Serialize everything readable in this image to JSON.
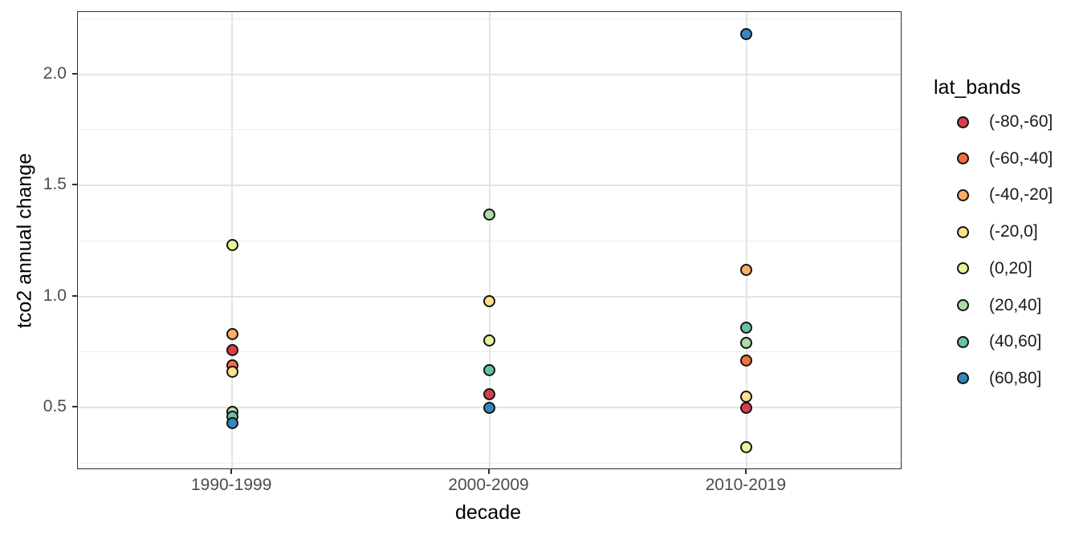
{
  "chart_data": {
    "type": "scatter",
    "title": "",
    "xlabel": "decade",
    "ylabel": "tco2 annual change",
    "categories": [
      "1990-1999",
      "2000-2009",
      "2010-2019"
    ],
    "y_axis": {
      "ticks": [
        {
          "value": 0.5,
          "label": "0.5"
        },
        {
          "value": 1.0,
          "label": "1.0"
        },
        {
          "value": 1.5,
          "label": "1.5"
        },
        {
          "value": 2.0,
          "label": "2.0"
        }
      ],
      "minor": [
        0.25,
        0.75,
        1.25,
        1.75,
        2.25
      ],
      "ylim": [
        0.226,
        2.28
      ]
    },
    "grid": true,
    "legend_title": "lat_bands",
    "legend_position": "right",
    "series": [
      {
        "name": "(-80,-60]",
        "color": "#d53e4f",
        "points": [
          {
            "decade": "1990-1999",
            "value": 0.76
          },
          {
            "decade": "2000-2009",
            "value": 0.56
          },
          {
            "decade": "2010-2019",
            "value": 0.5
          }
        ]
      },
      {
        "name": "(-60,-40]",
        "color": "#f46d43",
        "points": [
          {
            "decade": "1990-1999",
            "value": 0.69
          },
          {
            "decade": "2010-2019",
            "value": 0.71
          }
        ]
      },
      {
        "name": "(-40,-20]",
        "color": "#fdae61",
        "points": [
          {
            "decade": "1990-1999",
            "value": 0.83
          },
          {
            "decade": "2010-2019",
            "value": 1.12
          }
        ]
      },
      {
        "name": "(-20,0]",
        "color": "#fee08b",
        "points": [
          {
            "decade": "1990-1999",
            "value": 0.66
          },
          {
            "decade": "2000-2009",
            "value": 0.98
          },
          {
            "decade": "2010-2019",
            "value": 0.55
          }
        ]
      },
      {
        "name": "(0,20]",
        "color": "#e6f598",
        "points": [
          {
            "decade": "1990-1999",
            "value": 1.23
          },
          {
            "decade": "2000-2009",
            "value": 0.8
          },
          {
            "decade": "2010-2019",
            "value": 0.32
          }
        ]
      },
      {
        "name": "(20,40]",
        "color": "#abdda4",
        "points": [
          {
            "decade": "1990-1999",
            "value": 0.48
          },
          {
            "decade": "2000-2009",
            "value": 1.37
          },
          {
            "decade": "2010-2019",
            "value": 0.79
          }
        ]
      },
      {
        "name": "(40,60]",
        "color": "#66c2a5",
        "points": [
          {
            "decade": "1990-1999",
            "value": 0.46
          },
          {
            "decade": "2000-2009",
            "value": 0.67
          },
          {
            "decade": "2010-2019",
            "value": 0.86
          }
        ]
      },
      {
        "name": "(60,80]",
        "color": "#3288bd",
        "points": [
          {
            "decade": "1990-1999",
            "value": 0.43
          },
          {
            "decade": "2000-2009",
            "value": 0.5
          },
          {
            "decade": "2010-2019",
            "value": 2.18
          }
        ]
      }
    ]
  },
  "style": {
    "grid_major_color": "#e4e4e4",
    "grid_minor_color": "#ededed",
    "panel_border_color": "#2f2f2f",
    "tick_label_color": "#4d4d4d",
    "axis_title_color": "#000000",
    "point_stroke_color": "#141414",
    "background_color": "#ffffff"
  }
}
